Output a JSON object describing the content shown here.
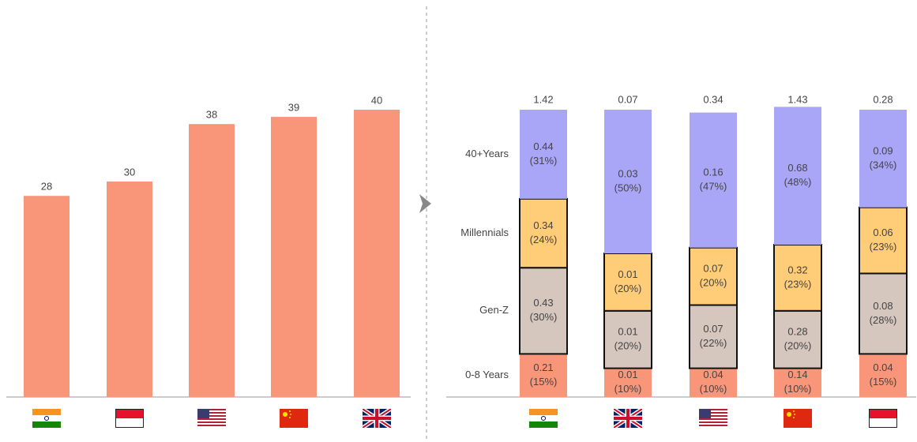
{
  "chart_data": [
    {
      "type": "bar",
      "categories": [
        null,
        null,
        null,
        null,
        null
      ],
      "values": [
        28,
        30,
        38,
        39,
        40
      ],
      "color": "#f9967a",
      "ylim": [
        0,
        40
      ]
    },
    {
      "type": "stacked_share_bar",
      "categories": [
        null,
        null,
        null,
        null,
        null
      ],
      "totals": [
        1.42,
        0.07,
        0.34,
        1.43,
        0.28
      ],
      "ylim": [
        0,
        100
      ],
      "series": [
        {
          "name": "0-8 Years",
          "color": "#f9967a",
          "outlined": false,
          "values": [
            0.21,
            0.01,
            0.04,
            0.14,
            0.04
          ],
          "shares": [
            15,
            10,
            10,
            10,
            15
          ],
          "share_labels": [
            "(15%)",
            "(10%)",
            "(10%)",
            "(10%)",
            "(15%)"
          ]
        },
        {
          "name": "Gen-Z",
          "color": "#d5c6be",
          "outlined": true,
          "values": [
            0.43,
            0.01,
            0.07,
            0.28,
            0.08
          ],
          "shares": [
            30,
            20,
            22,
            20,
            28
          ],
          "share_labels": [
            "(30%)",
            "(20%)",
            "(22%)",
            "(20%)",
            "(28%)"
          ]
        },
        {
          "name": "Millennials",
          "color": "#ffcc77",
          "outlined": true,
          "values": [
            0.34,
            0.01,
            0.07,
            0.32,
            0.06
          ],
          "shares": [
            24,
            20,
            20,
            23,
            23
          ],
          "share_labels": [
            "(24%)",
            "(20%)",
            "(20%)",
            "(23%)",
            "(23%)"
          ]
        },
        {
          "name": "40+Years",
          "color": "#a9a6f8",
          "outlined": false,
          "values": [
            0.44,
            0.03,
            0.16,
            0.68,
            0.09
          ],
          "shares": [
            31,
            50,
            47,
            48,
            34
          ],
          "share_labels": [
            "(31%)",
            "(50%)",
            "(47%)",
            "(48%)",
            "(34%)"
          ]
        }
      ]
    }
  ]
}
